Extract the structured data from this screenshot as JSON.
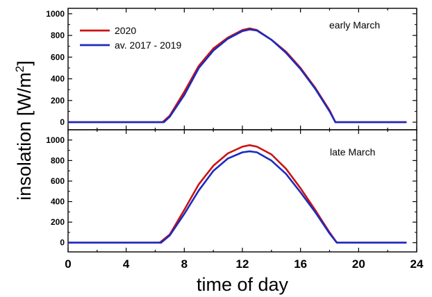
{
  "chart_data": {
    "type": "line",
    "xlabel": "time of day",
    "ylabel": "insolation [W/m2]",
    "ylabel_parts": {
      "main": "insolation [W/m",
      "sup": "2",
      "end": "]"
    },
    "xlim": [
      0,
      24
    ],
    "xticks": [
      "0",
      "4",
      "8",
      "12",
      "16",
      "20",
      "24"
    ],
    "legend": {
      "placement": "top-left"
    },
    "colors": {
      "2020": "#cc1111",
      "avg": "#1a2bbf"
    },
    "panels": [
      {
        "annotation": "early March",
        "ylim": [
          -70,
          1050
        ],
        "yticks": [
          "0",
          "200",
          "400",
          "600",
          "800",
          "1000"
        ],
        "series": [
          {
            "name": "2020",
            "color": "#cc1111",
            "x": [
              0,
              6.5,
              7,
              8,
              9,
              10,
              11,
              12,
              12.5,
              13,
              14,
              15,
              16,
              17,
              18,
              18.4,
              23.3
            ],
            "y": [
              0,
              0,
              60,
              280,
              520,
              680,
              780,
              850,
              865,
              850,
              760,
              650,
              500,
              320,
              110,
              0,
              0
            ]
          },
          {
            "name": "av. 2017 - 2019",
            "color": "#1a2bbf",
            "x": [
              0,
              6.6,
              7,
              8,
              9,
              10,
              11,
              12,
              12.5,
              13,
              14,
              15,
              16,
              17,
              18,
              18.4,
              23.3
            ],
            "y": [
              0,
              0,
              50,
              250,
              500,
              660,
              770,
              840,
              855,
              845,
              760,
              640,
              490,
              310,
              100,
              0,
              0
            ]
          }
        ]
      },
      {
        "annotation": "late March",
        "ylim": [
          -90,
          1100
        ],
        "yticks": [
          "0",
          "200",
          "400",
          "600",
          "800",
          "1000"
        ],
        "series": [
          {
            "name": "2020",
            "color": "#cc1111",
            "x": [
              0,
              6.3,
              7,
              8,
              9,
              10,
              11,
              12,
              12.5,
              13,
              14,
              15,
              16,
              17,
              18,
              18.5,
              23.3
            ],
            "y": [
              0,
              0,
              80,
              320,
              570,
              750,
              870,
              935,
              950,
              935,
              860,
              720,
              530,
              320,
              100,
              0,
              0
            ]
          },
          {
            "name": "av. 2017 - 2019",
            "color": "#1a2bbf",
            "x": [
              0,
              6.4,
              7,
              8,
              9,
              10,
              11,
              12,
              12.5,
              13,
              14,
              15,
              16,
              17,
              18,
              18.5,
              23.3
            ],
            "y": [
              0,
              0,
              70,
              280,
              510,
              700,
              820,
              880,
              890,
              880,
              800,
              670,
              490,
              300,
              90,
              0,
              0
            ]
          }
        ]
      }
    ]
  }
}
